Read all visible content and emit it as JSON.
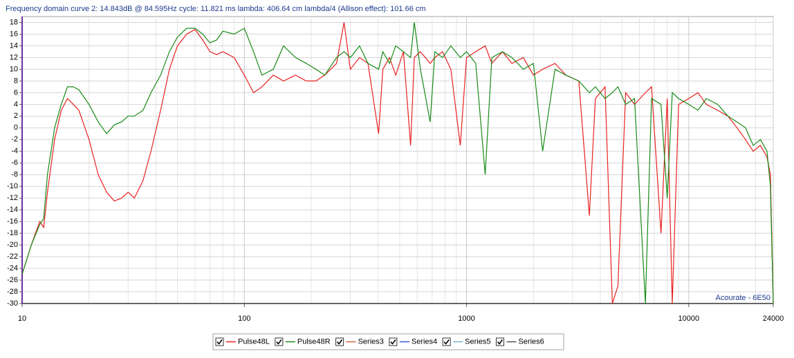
{
  "chart_data": {
    "type": "line",
    "title": "Frequency domain curve 2:  14.843dB @ 84.595Hz    cycle: 11.821 ms    lambda: 406.64 cm    lambda/4 (Allison effect): 101.66 cm",
    "annotation": "Acourate - 6E50",
    "x_scale": "log",
    "xlim": [
      10,
      24000
    ],
    "xticks": [
      10,
      100,
      1000,
      10000,
      24000
    ],
    "ylim": [
      -30,
      19
    ],
    "yticks": [
      18,
      16,
      14,
      12,
      10,
      8,
      6,
      4,
      2,
      0,
      -2,
      -4,
      -6,
      -8,
      -10,
      -12,
      -14,
      -16,
      -18,
      -20,
      -22,
      -24,
      -26,
      -28,
      -30
    ],
    "grid": true,
    "x_minor_grid": true,
    "legend": "bottom",
    "x": [
      10,
      11,
      12,
      12.5,
      13,
      14,
      15,
      16,
      17,
      18,
      20,
      22,
      24,
      26,
      28,
      30,
      32,
      35,
      38,
      42,
      46,
      50,
      55,
      60,
      65,
      70,
      75,
      80,
      90,
      100,
      110,
      120,
      135,
      150,
      170,
      190,
      210,
      230,
      260,
      281,
      300,
      330,
      360,
      402,
      420,
      450,
      480,
      520,
      560,
      582,
      620,
      686,
      720,
      780,
      850,
      937,
      1000,
      1100,
      1213,
      1300,
      1450,
      1600,
      1800,
      2000,
      2200,
      2500,
      2800,
      3200,
      3570,
      3800,
      4200,
      4530,
      4800,
      5200,
      5700,
      6380,
      6800,
      7500,
      8000,
      8430,
      9000,
      10000,
      11000,
      12000,
      13500,
      15000,
      16500,
      18000,
      19500,
      21000,
      22500,
      23300,
      24000
    ],
    "series": [
      {
        "name": "Pulse48L",
        "color": "#e8201e",
        "values": [
          -25,
          -20,
          -16,
          -17,
          -11,
          -2,
          3,
          5,
          4,
          3,
          -2,
          -8,
          -11,
          -12.5,
          -12,
          -11,
          -12,
          -9,
          -4,
          3,
          10,
          14,
          16,
          16.8,
          15,
          13,
          12.5,
          13,
          12,
          9,
          6,
          7,
          9,
          8,
          9,
          8,
          8,
          9,
          11,
          18,
          10,
          12,
          11,
          -1,
          10,
          12,
          9,
          13,
          -3,
          12,
          13,
          11,
          12,
          13,
          10,
          -3,
          12,
          13,
          14,
          11,
          13,
          11,
          12,
          9,
          10,
          11,
          9,
          8,
          -15,
          5,
          7,
          -30,
          -27,
          6,
          4,
          6,
          7,
          -18,
          5,
          -30,
          4,
          5,
          6,
          4,
          3,
          2,
          0,
          -2,
          -4,
          -3,
          -5,
          -8,
          -30
        ]
      },
      {
        "name": "Pulse48R",
        "color": "#178a17",
        "values": [
          -25,
          -20,
          -16.5,
          -15.5,
          -8,
          0,
          4,
          7,
          7,
          6.5,
          4,
          1,
          -1,
          0.5,
          1,
          2,
          2,
          3,
          6,
          9,
          13,
          15.5,
          17,
          17,
          16,
          14.5,
          15,
          16.5,
          16,
          17,
          13,
          9,
          10,
          14,
          12,
          11,
          10,
          9,
          12,
          13,
          12,
          14,
          11,
          10,
          13,
          11,
          14,
          13,
          12,
          18,
          10,
          1,
          13,
          12,
          14,
          12,
          13,
          11,
          -8,
          12,
          13,
          12,
          10,
          11,
          -4,
          10,
          9,
          8,
          6,
          7,
          5,
          6,
          7,
          4,
          5,
          -30,
          5,
          4,
          -12,
          6,
          5,
          4,
          3,
          5,
          4,
          2,
          1,
          0,
          -3,
          -2,
          -4,
          -10,
          -30
        ]
      }
    ],
    "legend_extra": [
      {
        "name": "Series3",
        "color": "#c8643c"
      },
      {
        "name": "Series4",
        "color": "#3c50d2"
      },
      {
        "name": "Series5",
        "color": "#78b4c8"
      },
      {
        "name": "Series6",
        "color": "#505050"
      }
    ]
  }
}
